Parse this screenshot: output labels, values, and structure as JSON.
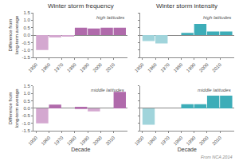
{
  "chart_data": [
    {
      "type": "bar",
      "title": "Winter storm frequency",
      "subtitle": "high latitudes",
      "ylabel": "Difference from long-term average",
      "x": [
        1950,
        1960,
        1970,
        1980,
        1990,
        2000,
        2010
      ],
      "values": [
        -1.0,
        -0.15,
        -0.05,
        0.5,
        0.45,
        0.5,
        0.5
      ],
      "colors": [
        "#d4a8d0",
        "#d4a8d0",
        "#d4a8d0",
        "#b06aab",
        "#b06aab",
        "#b06aab",
        "#b06aab"
      ],
      "xlim": [
        1948,
        2021
      ],
      "xticks": [
        1950,
        1960,
        1970,
        1980,
        1990,
        2000,
        2010
      ],
      "ylim": [
        -1.5,
        1.5
      ],
      "yticks": [
        -1.5,
        {
          "value": -1.0,
          "label": "-1.0"
        },
        -0.5,
        {
          "value": 0.0,
          "label": "0.0"
        },
        0.5,
        {
          "value": 1.0,
          "label": "1.0"
        },
        1.5
      ],
      "grid": false
    },
    {
      "type": "bar",
      "title": "Winter storm intensity",
      "subtitle": "high latitudes",
      "x": [
        1950,
        1960,
        1970,
        1980,
        1990,
        2000,
        2010
      ],
      "values": [
        -0.4,
        -0.55,
        0.0,
        0.15,
        0.75,
        0.25,
        0.25
      ],
      "colors": [
        "#a0d4db",
        "#a0d4db",
        "#3dadb8",
        "#3dadb8",
        "#3dadb8",
        "#3dadb8",
        "#3dadb8"
      ],
      "xlim": [
        1948,
        2021
      ],
      "xticks": [
        1950,
        1960,
        1970,
        1980,
        1990,
        2000,
        2010
      ],
      "ylim": [
        -1.5,
        1.5
      ],
      "yticks": [
        -1.5,
        {
          "value": -1.0,
          "label": "-1.0"
        },
        -0.5,
        {
          "value": 0.0,
          "label": "0.0"
        },
        0.5,
        {
          "value": 1.0,
          "label": "1.0"
        },
        1.5
      ],
      "tick_labels": "x",
      "grid": false
    },
    {
      "type": "bar",
      "subtitle": "middle latitudes",
      "ylabel": "Difference from long-term average",
      "xlabel": "Decade",
      "x": [
        1950,
        1960,
        1970,
        1980,
        1990,
        2000,
        2010
      ],
      "values": [
        -1.0,
        0.25,
        0.0,
        0.1,
        -0.2,
        0.0,
        1.1
      ],
      "colors": [
        "#d4a8d0",
        "#b06aab",
        "#b06aab",
        "#b06aab",
        "#d4a8d0",
        "#b06aab",
        "#b06aab"
      ],
      "xlim": [
        1948,
        2021
      ],
      "xticks": [
        1950,
        1960,
        1970,
        1980,
        1990,
        2000,
        2010
      ],
      "ylim": [
        -1.5,
        1.5
      ],
      "yticks": [
        -1.5,
        {
          "value": -1.0,
          "label": "-1.0"
        },
        -0.5,
        {
          "value": 0.0,
          "label": "0.0"
        },
        0.5,
        {
          "value": 1.0,
          "label": "1.0"
        },
        1.5
      ],
      "grid": false
    },
    {
      "type": "bar",
      "subtitle": "middle latitudes",
      "xlabel": "Decade",
      "annotation": "From NCA 2014",
      "x": [
        1950,
        1960,
        1970,
        1980,
        1990,
        2000,
        2010
      ],
      "values": [
        -1.1,
        0.0,
        0.0,
        0.28,
        0.28,
        0.85,
        0.85
      ],
      "colors": [
        "#a0d4db",
        "#3dadb8",
        "#3dadb8",
        "#3dadb8",
        "#3dadb8",
        "#3dadb8",
        "#3dadb8"
      ],
      "xlim": [
        1948,
        2021
      ],
      "xticks": [
        1950,
        1960,
        1970,
        1980,
        1990,
        2000,
        2010
      ],
      "ylim": [
        -1.5,
        1.5
      ],
      "yticks": [
        -1.5,
        {
          "value": -1.0,
          "label": "-1.0"
        },
        -0.5,
        {
          "value": 0.0,
          "label": "0.0"
        },
        0.5,
        {
          "value": 1.0,
          "label": "1.0"
        },
        1.5
      ],
      "tick_labels": "x",
      "grid": false
    }
  ]
}
